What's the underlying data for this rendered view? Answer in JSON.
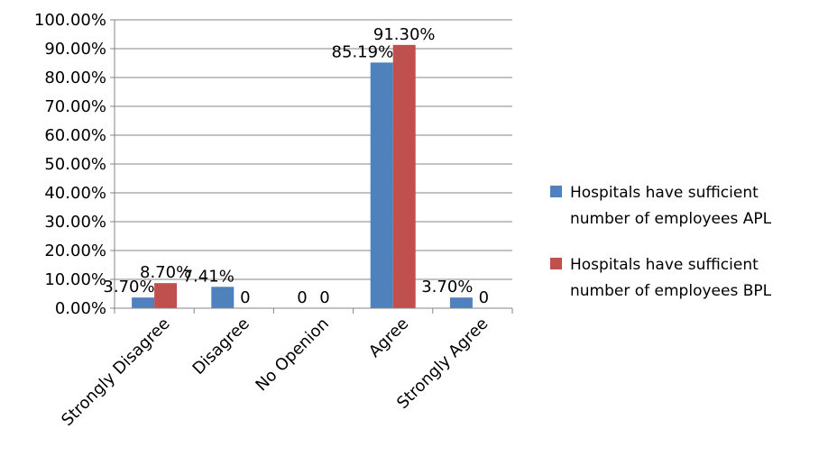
{
  "chart_data": {
    "type": "bar",
    "title": "",
    "xlabel": "",
    "ylabel": "",
    "ylim": [
      0,
      100
    ],
    "y_tick_labels": [
      "0.00%",
      "10.00%",
      "20.00%",
      "30.00%",
      "40.00%",
      "50.00%",
      "60.00%",
      "70.00%",
      "80.00%",
      "90.00%",
      "100.00%"
    ],
    "grid": true,
    "legend_position": "right",
    "categories": [
      "Strongly Disagree",
      "Disagree",
      "No Openion",
      "Agree",
      "Strongly Agree"
    ],
    "series": [
      {
        "name_lines": [
          "Hospitals have sufficient",
          "number of employees APL"
        ],
        "color": "#4f81bd",
        "values": [
          3.7,
          7.41,
          0,
          85.19,
          3.7
        ],
        "labels": [
          "3.70%",
          "7.41%",
          "0",
          "85.19%",
          "3.70%"
        ]
      },
      {
        "name_lines": [
          "Hospitals have sufficient",
          "number of employees BPL"
        ],
        "color": "#c0504d",
        "values": [
          8.7,
          0,
          0,
          91.3,
          0
        ],
        "labels": [
          "8.70%",
          "0",
          "0",
          "91.30%",
          "0"
        ]
      }
    ]
  }
}
